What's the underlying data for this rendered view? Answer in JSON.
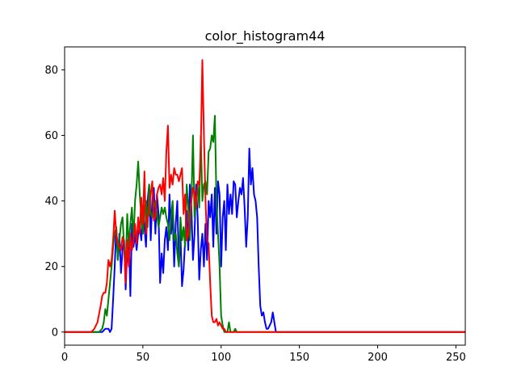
{
  "chart_data": {
    "type": "line",
    "title": "color_histogram44",
    "xlabel": "",
    "ylabel": "",
    "xlim": [
      0,
      256
    ],
    "ylim": [
      -4,
      87
    ],
    "xticks": [
      0,
      50,
      100,
      150,
      200,
      250
    ],
    "yticks": [
      0,
      20,
      40,
      60,
      80
    ],
    "grid": false,
    "series": [
      {
        "color": "#0000ff",
        "x": [
          0,
          20,
          22,
          24,
          26,
          27,
          28,
          29,
          30,
          31,
          32,
          33,
          34,
          35,
          36,
          37,
          38,
          39,
          40,
          41,
          42,
          43,
          44,
          45,
          46,
          47,
          48,
          49,
          50,
          51,
          52,
          53,
          54,
          55,
          56,
          57,
          58,
          59,
          60,
          61,
          62,
          63,
          64,
          65,
          66,
          67,
          68,
          69,
          70,
          71,
          72,
          73,
          74,
          75,
          76,
          77,
          78,
          79,
          80,
          81,
          82,
          83,
          84,
          85,
          86,
          87,
          88,
          89,
          90,
          91,
          92,
          93,
          94,
          95,
          96,
          97,
          98,
          99,
          100,
          101,
          102,
          103,
          104,
          105,
          106,
          107,
          108,
          109,
          110,
          111,
          112,
          113,
          114,
          115,
          116,
          117,
          118,
          119,
          120,
          121,
          122,
          123,
          124,
          125,
          126,
          127,
          128,
          129,
          130,
          131,
          132,
          133,
          134,
          135,
          140,
          256
        ],
        "y": [
          0,
          0,
          0,
          0,
          1,
          1,
          1,
          0,
          1,
          10,
          20,
          32,
          22,
          30,
          18,
          25,
          28,
          13,
          25,
          30,
          11,
          33,
          26,
          30,
          25,
          30,
          32,
          28,
          38,
          32,
          26,
          40,
          45,
          28,
          40,
          44,
          30,
          42,
          36,
          15,
          24,
          18,
          28,
          32,
          25,
          42,
          30,
          36,
          20,
          33,
          40,
          20,
          30,
          14,
          19,
          28,
          37,
          25,
          45,
          38,
          22,
          30,
          45,
          35,
          16,
          25,
          30,
          20,
          33,
          22,
          40,
          35,
          42,
          26,
          44,
          30,
          46,
          42,
          20,
          35,
          40,
          25,
          45,
          36,
          42,
          36,
          46,
          45,
          35,
          40,
          44,
          42,
          47,
          38,
          26,
          35,
          56,
          45,
          50,
          42,
          40,
          35,
          20,
          8,
          5,
          6,
          3,
          1,
          1,
          2,
          3,
          6,
          3,
          0,
          0,
          0
        ]
      },
      {
        "color": "#008000",
        "x": [
          0,
          20,
          22,
          24,
          25,
          26,
          27,
          28,
          29,
          30,
          31,
          32,
          33,
          34,
          35,
          36,
          37,
          38,
          39,
          40,
          41,
          42,
          43,
          44,
          45,
          46,
          47,
          48,
          49,
          50,
          51,
          52,
          53,
          54,
          55,
          56,
          57,
          58,
          59,
          60,
          61,
          62,
          63,
          64,
          65,
          66,
          67,
          68,
          69,
          70,
          71,
          72,
          73,
          74,
          75,
          76,
          77,
          78,
          79,
          80,
          81,
          82,
          83,
          84,
          85,
          86,
          87,
          88,
          89,
          90,
          91,
          92,
          93,
          94,
          95,
          96,
          97,
          98,
          99,
          100,
          101,
          102,
          103,
          104,
          105,
          106,
          107,
          108,
          109,
          110,
          111,
          112,
          113,
          114,
          115,
          120,
          256
        ],
        "y": [
          0,
          0,
          0,
          1,
          3,
          7,
          5,
          10,
          15,
          20,
          26,
          30,
          32,
          22,
          28,
          33,
          35,
          26,
          20,
          36,
          26,
          33,
          38,
          28,
          40,
          45,
          52,
          42,
          35,
          30,
          38,
          40,
          32,
          45,
          36,
          35,
          38,
          40,
          36,
          32,
          35,
          38,
          36,
          38,
          35,
          33,
          28,
          35,
          40,
          28,
          30,
          24,
          20,
          35,
          28,
          32,
          26,
          45,
          38,
          28,
          40,
          60,
          35,
          40,
          45,
          38,
          60,
          40,
          45,
          46,
          42,
          55,
          56,
          60,
          58,
          66,
          40,
          30,
          20,
          5,
          2,
          0,
          0,
          0,
          3,
          0,
          0,
          0,
          1,
          0,
          0,
          0,
          0,
          0,
          0,
          0,
          0
        ]
      },
      {
        "color": "#ff0000",
        "x": [
          0,
          15,
          17,
          19,
          21,
          23,
          24,
          25,
          26,
          27,
          28,
          29,
          30,
          31,
          32,
          33,
          34,
          35,
          36,
          37,
          38,
          39,
          40,
          41,
          42,
          43,
          44,
          45,
          46,
          47,
          48,
          49,
          50,
          51,
          52,
          53,
          54,
          55,
          56,
          57,
          58,
          59,
          60,
          61,
          62,
          63,
          64,
          65,
          66,
          67,
          68,
          69,
          70,
          71,
          72,
          73,
          74,
          75,
          76,
          77,
          78,
          79,
          80,
          81,
          82,
          83,
          84,
          85,
          86,
          87,
          88,
          89,
          90,
          91,
          92,
          93,
          94,
          95,
          96,
          97,
          98,
          99,
          100,
          101,
          102,
          103,
          104,
          105,
          106,
          107,
          108,
          109,
          110,
          111,
          112,
          113,
          114,
          115,
          256
        ],
        "y": [
          0,
          0,
          0,
          1,
          3,
          8,
          11,
          12,
          12,
          15,
          22,
          20,
          22,
          28,
          37,
          30,
          27,
          26,
          25,
          29,
          27,
          15,
          28,
          20,
          30,
          25,
          28,
          33,
          27,
          35,
          30,
          41,
          33,
          49,
          30,
          35,
          36,
          42,
          46,
          34,
          35,
          42,
          44,
          45,
          42,
          47,
          40,
          55,
          63,
          44,
          48,
          45,
          50,
          48,
          48,
          46,
          48,
          50,
          36,
          42,
          28,
          30,
          35,
          40,
          44,
          42,
          38,
          46,
          45,
          56,
          83,
          60,
          40,
          28,
          27,
          15,
          5,
          3,
          3,
          4,
          2,
          3,
          2,
          1,
          1,
          0,
          0,
          0,
          0,
          0,
          0,
          0,
          0,
          0,
          0,
          0,
          0,
          0,
          0
        ]
      }
    ]
  }
}
